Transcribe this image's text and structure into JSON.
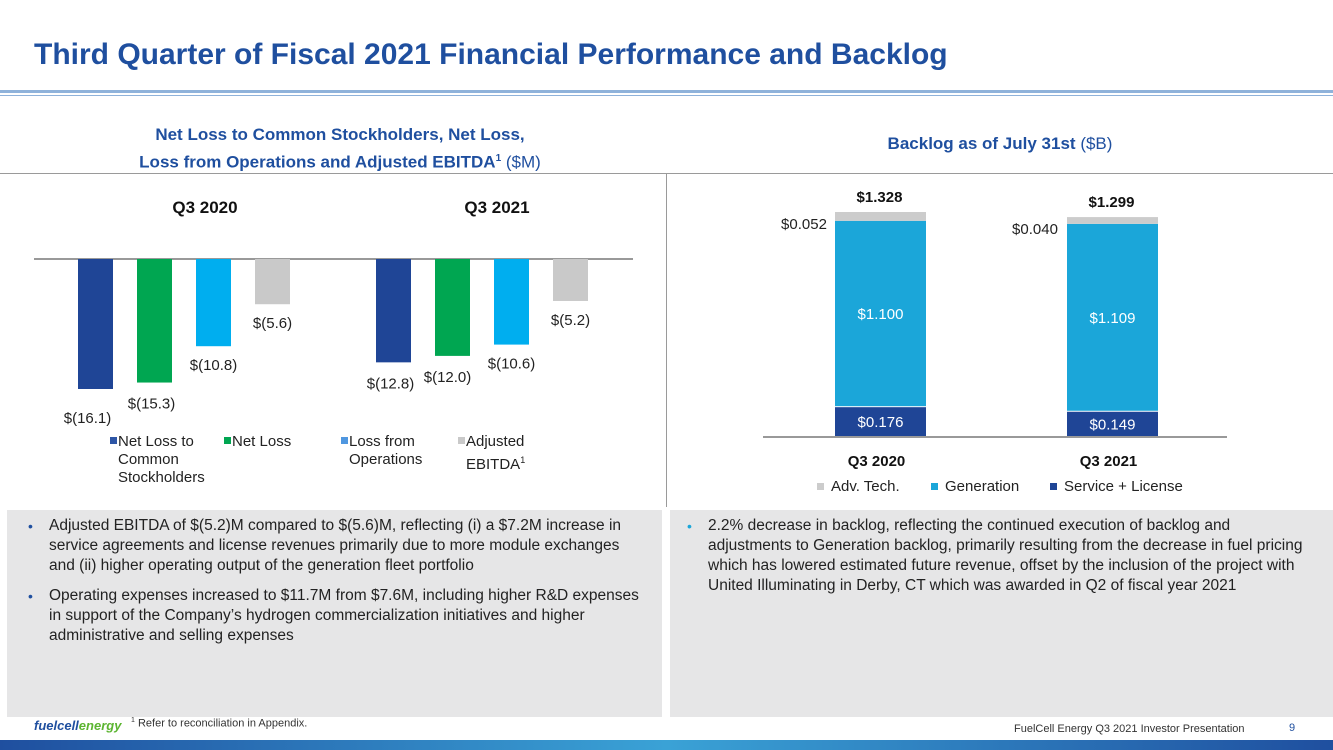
{
  "title": "Third Quarter of Fiscal 2021 Financial Performance and Backlog",
  "left_header": {
    "line1": "Net Loss to Common Stockholders, Net Loss,",
    "line2": "Loss from Operations and Adjusted EBITDA",
    "sup": "1",
    "unit": "($M)"
  },
  "right_header": {
    "text": "Backlog as of July 31st",
    "unit": "($B)"
  },
  "chart_data": [
    {
      "type": "bar",
      "groups": [
        "Q3 2020",
        "Q3 2021"
      ],
      "series": [
        {
          "name": "Net Loss to Common Stockholders",
          "color": "#1f4596",
          "values": [
            -16.1,
            -12.8
          ],
          "labels": [
            "$(16.1)",
            "$(12.8)"
          ]
        },
        {
          "name": "Net Loss",
          "color": "#00a651",
          "values": [
            -15.3,
            -12.0
          ],
          "labels": [
            "$(15.3)",
            "$(12.0)"
          ]
        },
        {
          "name": "Loss from Operations",
          "color": "#00aeef",
          "values": [
            -10.8,
            -10.6
          ],
          "labels": [
            "$(10.8)",
            "$(10.6)"
          ]
        },
        {
          "name": "Adjusted EBITDA",
          "color": "#c9c9c9",
          "values": [
            -5.6,
            -5.2
          ],
          "labels": [
            "$(5.6)",
            "$(5.2)"
          ]
        }
      ],
      "legend": [
        {
          "lines": [
            "Net Loss to",
            "Common",
            "Stockholders"
          ],
          "sup": "",
          "color": "#2e56a6"
        },
        {
          "lines": [
            "Net Loss"
          ],
          "sup": "",
          "color": "#00a651"
        },
        {
          "lines": [
            "Loss from",
            "Operations"
          ],
          "sup": "",
          "color": "#4f97e0"
        },
        {
          "lines": [
            "Adjusted",
            "EBITDA"
          ],
          "sup": "1",
          "color": "#c9c9c9"
        }
      ]
    },
    {
      "type": "bar",
      "stacked": true,
      "categories": [
        "Q3 2020",
        "Q3 2021"
      ],
      "totals": [
        "$1.328",
        "$1.299"
      ],
      "series": [
        {
          "name": "Service + License",
          "color": "#1f4596",
          "values": [
            0.176,
            0.149
          ],
          "labels": [
            "$0.176",
            "$0.149"
          ]
        },
        {
          "name": "Generation",
          "color": "#1ba6d9",
          "values": [
            1.1,
            1.109
          ],
          "labels": [
            "$1.100",
            "$1.109"
          ]
        },
        {
          "name": "Adv. Tech.",
          "color": "#cccccc",
          "values": [
            0.052,
            0.04
          ],
          "labels": [
            "$0.052",
            "$0.040"
          ]
        }
      ],
      "legend": [
        "Adv. Tech.",
        "Generation",
        "Service + License"
      ]
    }
  ],
  "left_bullets": [
    "Adjusted EBITDA of $(5.2)M compared to $(5.6)M, reflecting (i) a $7.2M increase in service agreements and license revenues primarily due to more module exchanges and (ii) higher operating output of the generation fleet portfolio",
    "Operating expenses increased to $11.7M from $7.6M, including higher R&D expenses in support of the Company’s hydrogen commercialization initiatives and higher administrative and selling expenses"
  ],
  "right_bullets": [
    "2.2% decrease in backlog, reflecting the continued execution of backlog and adjustments to Generation backlog, primarily resulting from the decrease in fuel pricing which has lowered estimated future revenue, offset by the inclusion of the project with United Illuminating in Derby, CT which was awarded in Q2 of fiscal year 2021"
  ],
  "footnote": {
    "sup": "1",
    "text": "Refer to reconciliation in Appendix."
  },
  "logo": {
    "part1": "fuelcell",
    "part2": "energy"
  },
  "presentation": "FuelCell Energy Q3 2021 Investor Presentation",
  "page_number": "9"
}
